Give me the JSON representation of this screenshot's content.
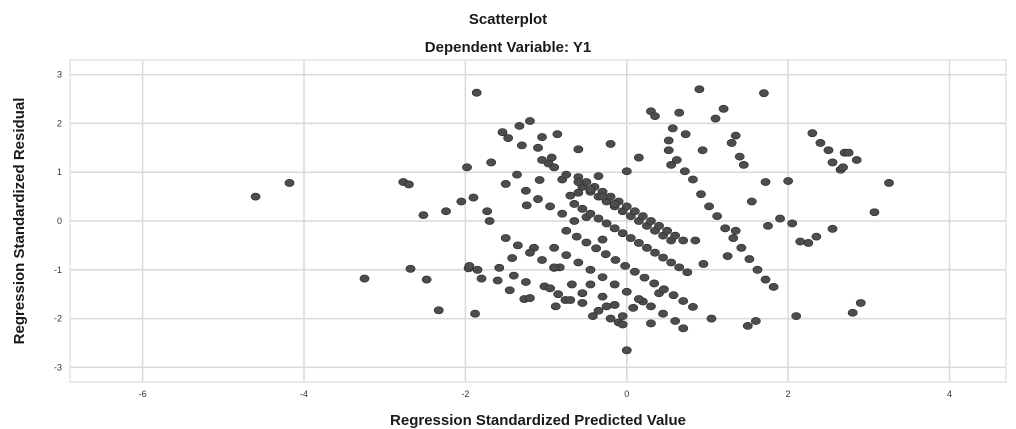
{
  "chart_data": {
    "type": "scatter",
    "title": "Scatterplot",
    "subtitle": "Dependent Variable: Y1",
    "xlabel": "Regression Standardized Predicted Value",
    "ylabel": "Regression Standardized Residual",
    "xlim": [
      -6.9,
      4.7
    ],
    "ylim": [
      -3.3,
      3.3
    ],
    "xticks": [
      -6,
      -4,
      -2,
      0,
      2,
      4
    ],
    "yticks": [
      3,
      2,
      1,
      0,
      -1,
      -2,
      -3
    ],
    "grid": true,
    "series": [
      {
        "x": [
          -4.6,
          -4.18,
          -3.25,
          -2.77,
          -2.7,
          -2.68,
          -2.52,
          -2.48,
          -2.33,
          -2.24,
          -2.05,
          -1.98,
          -1.96,
          -1.9,
          -1.88,
          -1.86,
          -1.8,
          -1.73,
          -1.68,
          -1.58,
          -1.54,
          -1.5,
          -1.47,
          -1.42,
          -1.36,
          -1.33,
          -1.3,
          -1.27,
          -1.24,
          -1.2,
          -1.15,
          -1.1,
          -1.08,
          -1.05,
          -1.02,
          -0.97,
          -0.93,
          -0.9,
          -0.88,
          -0.86,
          -0.83,
          -0.8,
          -0.76,
          -0.7,
          -0.68,
          -0.6,
          -0.55,
          -0.5,
          -0.42,
          -0.35,
          -0.3,
          -0.2,
          -0.15,
          -0.1,
          0.0,
          0.3,
          0.35,
          0.52,
          0.57,
          0.65,
          0.73,
          0.9,
          0.94,
          1.1,
          1.2,
          1.35,
          1.4,
          1.45,
          1.7,
          1.72,
          0.52,
          0.62,
          0.72,
          0.82,
          0.92,
          1.02,
          1.12,
          1.22,
          1.32,
          1.42,
          1.52,
          1.62,
          1.72,
          1.82,
          2.0,
          2.3,
          2.4,
          2.5,
          2.55,
          2.65,
          2.68,
          2.7,
          2.75,
          2.85,
          3.07,
          3.25,
          2.25,
          2.55,
          2.35,
          1.9,
          1.75,
          1.35,
          1.25,
          0.95,
          0.85,
          0.4,
          0.2,
          0.08,
          -0.05,
          0.0,
          -0.2,
          -0.3,
          -0.45,
          -0.55,
          -0.7,
          -0.95,
          -1.2,
          -1.45,
          -1.6,
          -1.85,
          2.9,
          2.8,
          2.1,
          1.6,
          1.5,
          1.05,
          0.7,
          0.3,
          -0.05,
          -0.25,
          -0.85,
          -1.25,
          -1.4,
          -1.95,
          -1.7,
          -0.6,
          -0.35,
          0.15,
          0.55,
          1.3,
          1.55,
          2.05,
          2.15,
          -0.55,
          -0.45,
          -0.35,
          -0.25,
          -0.15,
          -0.05,
          0.05,
          0.15,
          0.25,
          0.35,
          0.45,
          0.55,
          -0.6,
          -0.5,
          -0.4,
          -0.3,
          -0.2,
          -0.1,
          0.0,
          0.1,
          0.2,
          0.3,
          0.4,
          0.5,
          0.6,
          0.7,
          -0.65,
          -0.55,
          -0.45,
          -0.35,
          -0.25,
          -0.15,
          -0.05,
          0.05,
          0.15,
          0.25,
          0.35,
          0.45,
          0.55,
          0.65,
          0.75,
          -0.75,
          -0.62,
          -0.5,
          -0.38,
          -0.26,
          -0.14,
          -0.02,
          0.1,
          0.22,
          0.34,
          0.46,
          0.58,
          0.7,
          0.82,
          -0.9,
          -0.75,
          -0.6,
          -0.45,
          -0.3,
          -0.15,
          0.0,
          0.15,
          0.3,
          0.45,
          0.6,
          -1.05,
          -0.9,
          -0.75,
          -0.6,
          -0.45,
          -0.3,
          -0.15,
          -1.25,
          -1.1,
          -0.95,
          -0.8,
          -0.65,
          -1.5,
          -1.35,
          -1.2,
          -1.05,
          -0.9
        ],
        "y": [
          0.5,
          0.78,
          -1.18,
          0.8,
          0.75,
          -0.98,
          0.12,
          -1.2,
          -1.83,
          0.2,
          0.4,
          1.1,
          -0.97,
          0.48,
          -1.9,
          2.63,
          -1.18,
          0.2,
          1.2,
          -0.96,
          1.82,
          0.76,
          1.7,
          -0.76,
          0.95,
          1.95,
          1.55,
          -1.6,
          0.32,
          2.05,
          -0.55,
          1.5,
          0.84,
          1.72,
          -1.34,
          1.18,
          1.3,
          -0.96,
          -1.75,
          1.78,
          -0.95,
          0.85,
          -1.62,
          0.52,
          -1.3,
          1.47,
          -1.68,
          0.08,
          -1.95,
          -1.84,
          -0.38,
          1.58,
          -1.72,
          -2.08,
          1.02,
          2.25,
          2.15,
          1.65,
          1.9,
          2.22,
          1.78,
          2.7,
          1.45,
          2.1,
          2.3,
          1.75,
          1.32,
          1.15,
          2.62,
          0.8,
          1.45,
          1.25,
          1.02,
          0.85,
          0.55,
          0.3,
          0.1,
          -0.15,
          -0.35,
          -0.55,
          -0.78,
          -1.0,
          -1.2,
          -1.35,
          0.82,
          1.8,
          1.6,
          1.45,
          1.2,
          1.05,
          1.1,
          1.4,
          1.4,
          1.25,
          0.18,
          0.78,
          -0.45,
          -0.16,
          -0.32,
          0.05,
          -0.1,
          -0.2,
          -0.72,
          -0.88,
          -0.4,
          -1.48,
          -1.65,
          -1.78,
          -2.12,
          -2.65,
          -2.0,
          -1.55,
          -1.3,
          -1.48,
          -1.62,
          -1.38,
          -1.58,
          -1.42,
          -1.22,
          -1.0,
          -1.68,
          -1.88,
          -1.95,
          -2.05,
          -2.15,
          -2.0,
          -2.2,
          -2.1,
          -1.95,
          -1.75,
          -1.5,
          -1.25,
          -1.12,
          -0.92,
          0.0,
          0.58,
          0.92,
          1.3,
          1.15,
          1.6,
          0.4,
          -0.05,
          -0.42,
          0.7,
          0.6,
          0.5,
          0.4,
          0.3,
          0.2,
          0.1,
          0.0,
          -0.1,
          -0.2,
          -0.3,
          -0.4,
          0.9,
          0.8,
          0.7,
          0.6,
          0.5,
          0.4,
          0.3,
          0.2,
          0.1,
          0.0,
          -0.1,
          -0.2,
          -0.3,
          -0.4,
          0.35,
          0.25,
          0.15,
          0.05,
          -0.05,
          -0.15,
          -0.25,
          -0.35,
          -0.45,
          -0.55,
          -0.65,
          -0.75,
          -0.85,
          -0.95,
          -1.05,
          -0.2,
          -0.32,
          -0.44,
          -0.56,
          -0.68,
          -0.8,
          -0.92,
          -1.04,
          -1.16,
          -1.28,
          -1.4,
          -1.52,
          -1.64,
          -1.76,
          -0.55,
          -0.7,
          -0.85,
          -1.0,
          -1.15,
          -1.3,
          -1.45,
          -1.6,
          -1.75,
          -1.9,
          -2.05,
          1.25,
          1.1,
          0.95,
          0.8,
          0.65,
          0.5,
          0.35,
          0.62,
          0.45,
          0.3,
          0.15,
          0.0,
          -0.35,
          -0.5,
          -0.65,
          -0.8,
          -0.95
        ]
      }
    ]
  }
}
